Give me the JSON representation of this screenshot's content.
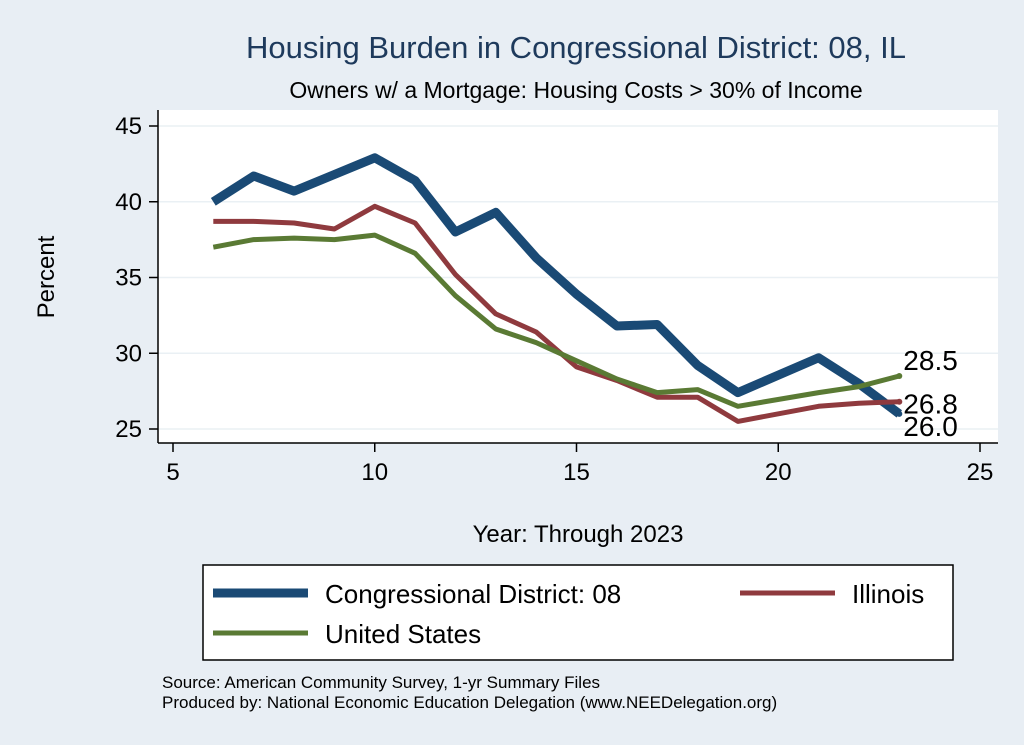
{
  "chart_data": {
    "type": "line",
    "title": "Housing Burden in Congressional District:  08, IL",
    "subtitle": "Owners w/ a Mortgage: Housing Costs > 30% of Income",
    "xlabel": "Year: Through 2023",
    "ylabel": "Percent",
    "xlim": [
      5,
      25
    ],
    "ylim": [
      25,
      45
    ],
    "xticks": [
      5,
      10,
      15,
      20,
      25
    ],
    "yticks": [
      25,
      30,
      35,
      40,
      45
    ],
    "grid": true,
    "legend_position": "bottom",
    "series": [
      {
        "name": "Congressional District:  08",
        "color": "#1a4a75",
        "x": [
          6,
          7,
          8,
          9,
          10,
          11,
          12,
          13,
          14,
          15,
          16,
          17,
          18,
          19,
          21,
          22,
          23
        ],
        "values": [
          40.0,
          41.7,
          40.7,
          41.8,
          42.9,
          41.4,
          38.0,
          39.3,
          36.3,
          33.9,
          31.8,
          31.9,
          29.2,
          27.4,
          29.7,
          28.0,
          26.0
        ],
        "end_label": "26.0"
      },
      {
        "name": "Illinois",
        "color": "#8f3a3e",
        "x": [
          6,
          7,
          8,
          9,
          10,
          11,
          12,
          13,
          14,
          15,
          16,
          17,
          18,
          19,
          21,
          22,
          23
        ],
        "values": [
          38.7,
          38.7,
          38.6,
          38.2,
          39.7,
          38.6,
          35.2,
          32.6,
          31.4,
          29.1,
          28.2,
          27.1,
          27.1,
          25.5,
          26.5,
          26.7,
          26.8
        ],
        "end_label": "26.8"
      },
      {
        "name": "United States",
        "color": "#5a7a34",
        "x": [
          6,
          7,
          8,
          9,
          10,
          11,
          12,
          13,
          14,
          15,
          16,
          17,
          18,
          19,
          21,
          22,
          23
        ],
        "values": [
          37.0,
          37.5,
          37.6,
          37.5,
          37.8,
          36.6,
          33.8,
          31.6,
          30.7,
          29.5,
          28.3,
          27.4,
          27.6,
          26.5,
          27.4,
          27.8,
          28.5
        ],
        "end_label": "28.5"
      }
    ],
    "notes": [
      "Source: American Community Survey, 1-yr Summary Files",
      "Produced by: National Economic Education Delegation (www.NEEDelegation.org)"
    ]
  }
}
